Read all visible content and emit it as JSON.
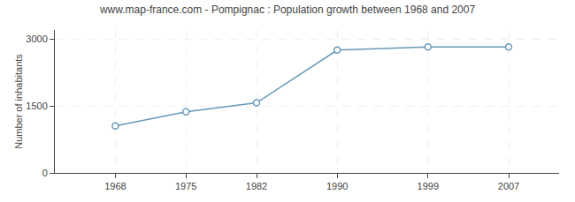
{
  "chart_data": {
    "type": "line",
    "title": "www.map-france.com - Pompignac : Population growth between 1968 and 2007",
    "ylabel": "Number of inhabitants",
    "x": [
      1968,
      1975,
      1982,
      1990,
      1999,
      2007
    ],
    "values": [
      1050,
      1370,
      1570,
      2750,
      2820,
      2820
    ],
    "color": "#6699bb",
    "marker": "circle",
    "xlim": [
      1962,
      2012
    ],
    "xticks": [
      1968,
      1975,
      1982,
      1990,
      1999,
      2007
    ],
    "ylim": [
      0,
      3200
    ],
    "yticks": [
      0,
      1500,
      3000
    ],
    "grid": true
  }
}
